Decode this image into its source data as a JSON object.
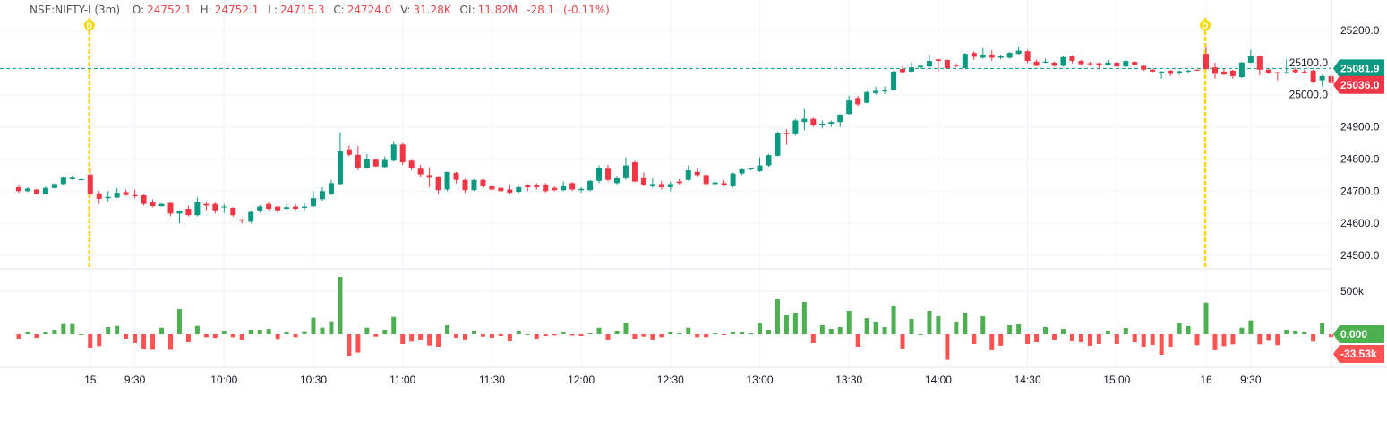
{
  "header": {
    "symbol": "NSE:NIFTY-I",
    "interval": "(3m)",
    "o_label": "O:",
    "o": "24752.1",
    "h_label": "H:",
    "h": "24752.1",
    "l_label": "L:",
    "l": "24715.3",
    "c_label": "C:",
    "c": "24724.0",
    "v_label": "V:",
    "v": "31.28K",
    "oi_label": "OI:",
    "oi": "11.82M",
    "change": "-28.1",
    "change_pct": "(-0.11%)"
  },
  "colors": {
    "up": "#089981",
    "down": "#f23645",
    "vol_up": "#4caf50",
    "vol_down": "#ff5252",
    "marker": "#f5d90a",
    "grid": "#f0f3fa"
  },
  "markers": [
    {
      "label": "D",
      "icon": "day-marker-icon",
      "at": "15"
    },
    {
      "label": "D",
      "icon": "day-marker-icon",
      "at": "16"
    }
  ],
  "chart_data": {
    "type": "candlestick",
    "x_tick_labels": [
      {
        "label": "15",
        "index": 8
      },
      {
        "label": "9:30",
        "index": 13
      },
      {
        "label": "10:00",
        "index": 23
      },
      {
        "label": "10:30",
        "index": 33
      },
      {
        "label": "11:00",
        "index": 43
      },
      {
        "label": "11:30",
        "index": 53
      },
      {
        "label": "12:00",
        "index": 63
      },
      {
        "label": "12:30",
        "index": 73
      },
      {
        "label": "13:00",
        "index": 83
      },
      {
        "label": "13:30",
        "index": 93
      },
      {
        "label": "14:00",
        "index": 103
      },
      {
        "label": "14:30",
        "index": 113
      },
      {
        "label": "15:00",
        "index": 123
      },
      {
        "label": "16",
        "index": 133
      },
      {
        "label": "9:30",
        "index": 138
      }
    ],
    "price_axis": {
      "ticks": [
        "25200.0",
        "25100.0",
        "25000.0",
        "24900.0",
        "24800.0",
        "24700.0",
        "24600.0",
        "24500.0"
      ],
      "range": [
        24480,
        25235
      ]
    },
    "price_line": {
      "value": "25081.9",
      "color": "#089981"
    },
    "last_price": {
      "value": "25036.0",
      "color": "#f23645"
    },
    "ohlc": [
      [
        24712,
        24718,
        24695,
        24700
      ],
      [
        24700,
        24712,
        24697,
        24708
      ],
      [
        24705,
        24707,
        24690,
        24692
      ],
      [
        24692,
        24714,
        24690,
        24710
      ],
      [
        24710,
        24724,
        24708,
        24722
      ],
      [
        24722,
        24746,
        24718,
        24742
      ],
      [
        24737,
        24748,
        24735,
        24742
      ],
      [
        24736,
        24740,
        24734,
        24737
      ],
      [
        24752,
        24770,
        24680,
        24690
      ],
      [
        24693,
        24700,
        24660,
        24676
      ],
      [
        24678,
        24700,
        24668,
        24682
      ],
      [
        24680,
        24710,
        24678,
        24695
      ],
      [
        24697,
        24705,
        24685,
        24688
      ],
      [
        24688,
        24705,
        24677,
        24684
      ],
      [
        24687,
        24690,
        24655,
        24660
      ],
      [
        24665,
        24674,
        24650,
        24653
      ],
      [
        24653,
        24662,
        24652,
        24660
      ],
      [
        24663,
        24665,
        24622,
        24630
      ],
      [
        24630,
        24640,
        24600,
        24638
      ],
      [
        24645,
        24655,
        24622,
        24625
      ],
      [
        24625,
        24680,
        24622,
        24665
      ],
      [
        24660,
        24665,
        24640,
        24655
      ],
      [
        24660,
        24664,
        24630,
        24640
      ],
      [
        24650,
        24660,
        24632,
        24652
      ],
      [
        24648,
        24650,
        24620,
        24625
      ],
      [
        24612,
        24614,
        24600,
        24608
      ],
      [
        24605,
        24640,
        24600,
        24635
      ],
      [
        24640,
        24656,
        24632,
        24652
      ],
      [
        24660,
        24664,
        24640,
        24645
      ],
      [
        24652,
        24655,
        24632,
        24640
      ],
      [
        24645,
        24660,
        24640,
        24650
      ],
      [
        24652,
        24660,
        24640,
        24645
      ],
      [
        24648,
        24662,
        24640,
        24652
      ],
      [
        24653,
        24700,
        24650,
        24678
      ],
      [
        24675,
        24712,
        24670,
        24700
      ],
      [
        24690,
        24735,
        24688,
        24725
      ],
      [
        24722,
        24883,
        24720,
        24825
      ],
      [
        24830,
        24842,
        24808,
        24813
      ],
      [
        24813,
        24840,
        24765,
        24773
      ],
      [
        24773,
        24815,
        24770,
        24800
      ],
      [
        24798,
        24800,
        24775,
        24777
      ],
      [
        24775,
        24808,
        24773,
        24797
      ],
      [
        24795,
        24855,
        24792,
        24845
      ],
      [
        24845,
        24850,
        24782,
        24790
      ],
      [
        24795,
        24798,
        24765,
        24773
      ],
      [
        24770,
        24782,
        24745,
        24752
      ],
      [
        24750,
        24775,
        24712,
        24742
      ],
      [
        24745,
        24748,
        24690,
        24703
      ],
      [
        24705,
        24760,
        24700,
        24760
      ],
      [
        24757,
        24760,
        24725,
        24735
      ],
      [
        24735,
        24738,
        24695,
        24703
      ],
      [
        24703,
        24738,
        24700,
        24735
      ],
      [
        24735,
        24738,
        24712,
        24715
      ],
      [
        24715,
        24725,
        24700,
        24705
      ],
      [
        24710,
        24714,
        24698,
        24700
      ],
      [
        24705,
        24720,
        24690,
        24695
      ],
      [
        24698,
        24716,
        24695,
        24712
      ],
      [
        24718,
        24722,
        24700,
        24712
      ],
      [
        24718,
        24725,
        24705,
        24712
      ],
      [
        24720,
        24725,
        24695,
        24700
      ],
      [
        24710,
        24715,
        24700,
        24703
      ],
      [
        24703,
        24730,
        24700,
        24715
      ],
      [
        24725,
        24728,
        24700,
        24705
      ],
      [
        24703,
        24712,
        24695,
        24707
      ],
      [
        24703,
        24735,
        24700,
        24732
      ],
      [
        24732,
        24780,
        24725,
        24772
      ],
      [
        24770,
        24782,
        24730,
        24735
      ],
      [
        24725,
        24748,
        24720,
        24740
      ],
      [
        24740,
        24805,
        24735,
        24780
      ],
      [
        24790,
        24795,
        24728,
        24730
      ],
      [
        24740,
        24758,
        24715,
        24720
      ],
      [
        24715,
        24740,
        24710,
        24722
      ],
      [
        24722,
        24732,
        24705,
        24712
      ],
      [
        24712,
        24730,
        24700,
        24722
      ],
      [
        24730,
        24738,
        24720,
        24725
      ],
      [
        24735,
        24780,
        24732,
        24765
      ],
      [
        24760,
        24772,
        24745,
        24750
      ],
      [
        24750,
        24752,
        24715,
        24722
      ],
      [
        24722,
        24735,
        24720,
        24727
      ],
      [
        24725,
        24735,
        24715,
        24718
      ],
      [
        24715,
        24758,
        24712,
        24755
      ],
      [
        24755,
        24770,
        24750,
        24768
      ],
      [
        24768,
        24773,
        24765,
        24771
      ],
      [
        24762,
        24805,
        24760,
        24780
      ],
      [
        24780,
        24815,
        24776,
        24812
      ],
      [
        24810,
        24885,
        24808,
        24880
      ],
      [
        24880,
        24893,
        24845,
        24877
      ],
      [
        24877,
        24925,
        24873,
        24920
      ],
      [
        24915,
        24955,
        24890,
        24925
      ],
      [
        24925,
        24928,
        24900,
        24905
      ],
      [
        24905,
        24920,
        24895,
        24910
      ],
      [
        24910,
        24920,
        24900,
        24915
      ],
      [
        24915,
        24940,
        24900,
        24938
      ],
      [
        24940,
        24997,
        24938,
        24982
      ],
      [
        24990,
        24997,
        24965,
        24970
      ],
      [
        24975,
        25012,
        24973,
        25008
      ],
      [
        25005,
        25025,
        25000,
        25012
      ],
      [
        25010,
        25025,
        25003,
        25015
      ],
      [
        25015,
        25075,
        25013,
        25072
      ],
      [
        25080,
        25090,
        25067,
        25070
      ],
      [
        25072,
        25100,
        25070,
        25085
      ],
      [
        25085,
        25095,
        25080,
        25090
      ],
      [
        25088,
        25125,
        25085,
        25105
      ],
      [
        25110,
        25112,
        25072,
        25105
      ],
      [
        25108,
        25110,
        25080,
        25083
      ],
      [
        25092,
        25097,
        25085,
        25090
      ],
      [
        25083,
        25130,
        25082,
        25127
      ],
      [
        25130,
        25135,
        25108,
        25118
      ],
      [
        25115,
        25145,
        25112,
        25125
      ],
      [
        25125,
        25138,
        25105,
        25115
      ],
      [
        25115,
        25125,
        25110,
        25120
      ],
      [
        25115,
        25133,
        25112,
        25130
      ],
      [
        25127,
        25150,
        25125,
        25137
      ],
      [
        25135,
        25140,
        25098,
        25105
      ],
      [
        25103,
        25110,
        25088,
        25090
      ],
      [
        25100,
        25112,
        25098,
        25103
      ],
      [
        25100,
        25103,
        25087,
        25090
      ],
      [
        25090,
        25120,
        25088,
        25117
      ],
      [
        25120,
        25123,
        25098,
        25105
      ],
      [
        25105,
        25108,
        25092,
        25095
      ],
      [
        25098,
        25103,
        25090,
        25095
      ],
      [
        25098,
        25100,
        25080,
        25092
      ],
      [
        25092,
        25108,
        25090,
        25100
      ],
      [
        25100,
        25102,
        25085,
        25088
      ],
      [
        25088,
        25110,
        25086,
        25105
      ],
      [
        25102,
        25105,
        25090,
        25092
      ],
      [
        25090,
        25093,
        25074,
        25078
      ],
      [
        25078,
        25080,
        25070,
        25072
      ],
      [
        25068,
        25074,
        25050,
        25072
      ],
      [
        25075,
        25077,
        25058,
        25065
      ],
      [
        25068,
        25076,
        25062,
        25073
      ],
      [
        25072,
        25078,
        25066,
        25075
      ],
      [
        25078,
        25079,
        25074,
        25075
      ],
      [
        25127,
        25150,
        25078,
        25080
      ],
      [
        25085,
        25100,
        25050,
        25065
      ],
      [
        25072,
        25080,
        25060,
        25063
      ],
      [
        25075,
        25078,
        25050,
        25058
      ],
      [
        25055,
        25102,
        25052,
        25100
      ],
      [
        25100,
        25140,
        25098,
        25120
      ],
      [
        25120,
        25123,
        25060,
        25078
      ],
      [
        25078,
        25080,
        25064,
        25068
      ],
      [
        25070,
        25072,
        25045,
        25068
      ],
      [
        25066,
        25110,
        25064,
        25070
      ],
      [
        25078,
        25085,
        25066,
        25070
      ],
      [
        25072,
        25078,
        25066,
        25070
      ],
      [
        25075,
        25078,
        25035,
        25040
      ],
      [
        25045,
        25062,
        25025,
        25058
      ],
      [
        25058,
        25060,
        25030,
        25036
      ]
    ],
    "lower_pane": {
      "axis_ticks": [
        "500k"
      ],
      "unit": "k",
      "zero_label": "0.000",
      "last_label": "-33.53k",
      "values": [
        -52,
        31,
        -42,
        31,
        52,
        118,
        118,
        0,
        -156,
        -139,
        83,
        97,
        -52,
        -104,
        -167,
        -180,
        76,
        -180,
        291,
        -94,
        97,
        -35,
        -42,
        42,
        -35,
        -62,
        52,
        52,
        62,
        -55,
        24,
        -35,
        35,
        191,
        76,
        149,
        666,
        -250,
        -215,
        76,
        -28,
        52,
        201,
        -115,
        -87,
        -73,
        -132,
        -146,
        104,
        -42,
        -62,
        42,
        -28,
        -42,
        -21,
        -83,
        42,
        0,
        -52,
        -21,
        -14,
        21,
        -14,
        -21,
        10,
        76,
        -62,
        42,
        135,
        -52,
        -28,
        -62,
        -35,
        21,
        10,
        76,
        -35,
        -35,
        10,
        -10,
        21,
        21,
        10,
        135,
        52,
        406,
        219,
        250,
        375,
        -104,
        104,
        62,
        83,
        271,
        -146,
        187,
        146,
        83,
        333,
        -167,
        177,
        0,
        271,
        208,
        -298,
        146,
        250,
        -115,
        208,
        -187,
        -135,
        104,
        115,
        -115,
        -94,
        83,
        -62,
        62,
        -83,
        -94,
        -135,
        -115,
        42,
        -115,
        73,
        -94,
        -146,
        -125,
        -239,
        -146,
        135,
        94,
        -128,
        368,
        -187,
        -139,
        -118,
        76,
        160,
        -118,
        -76,
        -128,
        52,
        42,
        24,
        -87,
        128,
        -33.53
      ]
    }
  }
}
